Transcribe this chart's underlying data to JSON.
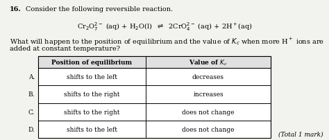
{
  "question_number": "16.",
  "question_text": "Consider the following reversible reaction.",
  "reaction_left": "Cr",
  "reaction": "Cr₂O₇² (aq) + H₂O(l)   2CrO₄² (aq) + 2H⁺(aq)",
  "line1": "What will happen to the position of equilibrium and the value of ",
  "line1b": " when more H",
  "line1c": " ions are",
  "line2": "added at constant temperature?",
  "col1_header": "Position of equilibrium",
  "col2_header": "Value of ",
  "rows": [
    {
      "label": "A.",
      "col1": "shifts to the left",
      "col2": "decreases"
    },
    {
      "label": "B.",
      "col1": "shifts to the right",
      "col2": "increases"
    },
    {
      "label": "C.",
      "col1": "shifts to the right",
      "col2": "does not change"
    },
    {
      "label": "D.",
      "col1": "shifts to the left",
      "col2": "does not change"
    }
  ],
  "footer": "(Total 1 mark)",
  "bg_color": "#f2f2ee",
  "table_bg": "#ffffff",
  "header_bg": "#e0e0e0"
}
